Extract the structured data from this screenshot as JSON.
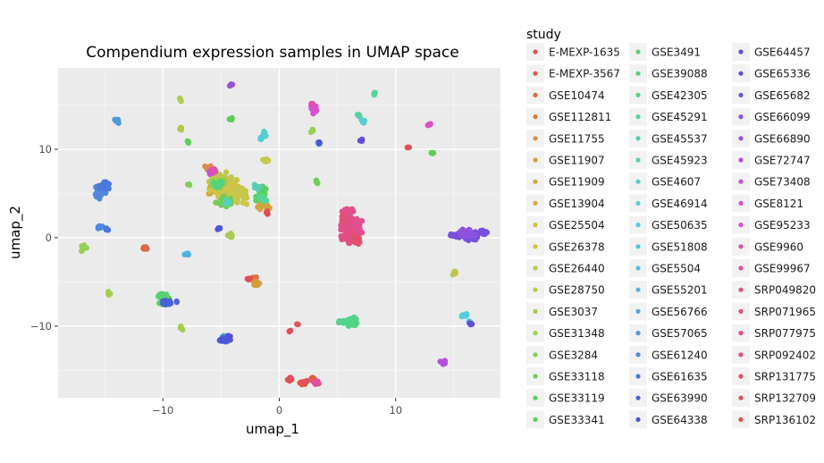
{
  "chart_data": {
    "type": "scatter",
    "title": "Compendium expression samples in UMAP space",
    "xlabel": "umap_1",
    "ylabel": "umap_2",
    "xlim": [
      -19.0,
      19.0
    ],
    "ylim": [
      -18.1,
      19.2
    ],
    "xticks": [
      -10,
      0,
      10
    ],
    "xtick_labels": [
      "−10",
      "0",
      "10"
    ],
    "yticks": [
      -10,
      0,
      10
    ],
    "ytick_labels": [
      "−10",
      "0",
      "10"
    ],
    "grid": true,
    "legend": {
      "title": "study",
      "placement": "right"
    },
    "series": [
      {
        "name": "E-MEXP-1635",
        "color": "#e24f57",
        "clusters": [
          [
            1.0,
            -16.0,
            0.3,
            0.3,
            10
          ]
        ]
      },
      {
        "name": "E-MEXP-3567",
        "color": "#e05a4a",
        "clusters": [
          [
            2.0,
            -16.4,
            0.4,
            0.2,
            14
          ],
          [
            2.9,
            -16.0,
            0.2,
            0.2,
            6
          ]
        ]
      },
      {
        "name": "GSE10474",
        "color": "#d96a45",
        "clusters": [
          [
            -11.5,
            -1.2,
            0.2,
            0.2,
            10
          ]
        ]
      },
      {
        "name": "GSE112811",
        "color": "#d7773f",
        "clusters": [
          [
            -2.2,
            -4.6,
            0.3,
            0.2,
            10
          ]
        ]
      },
      {
        "name": "GSE11755",
        "color": "#d98a4a",
        "clusters": [
          [
            -6.1,
            7.9,
            0.3,
            0.3,
            8
          ]
        ]
      },
      {
        "name": "GSE11907",
        "color": "#d49c3d",
        "clusters": [
          [
            -2.0,
            -5.2,
            0.35,
            0.25,
            18
          ]
        ]
      },
      {
        "name": "GSE11909",
        "color": "#d3a43f",
        "clusters": [
          [
            -1.5,
            3.5,
            0.7,
            0.5,
            14
          ]
        ]
      },
      {
        "name": "GSE13904",
        "color": "#cfae3e",
        "clusters": [
          [
            -5.2,
            5.5,
            1.0,
            0.8,
            30
          ]
        ]
      },
      {
        "name": "GSE25504",
        "color": "#cfc246",
        "clusters": [
          [
            -4.6,
            5.8,
            1.4,
            1.1,
            70
          ]
        ]
      },
      {
        "name": "GSE26378",
        "color": "#c7c74b",
        "clusters": [
          [
            -4.0,
            4.6,
            1.2,
            0.9,
            50
          ],
          [
            -1.1,
            8.8,
            0.3,
            0.2,
            6
          ]
        ]
      },
      {
        "name": "GSE26440",
        "color": "#bfc64b",
        "clusters": [
          [
            -5.0,
            6.5,
            1.1,
            0.9,
            40
          ],
          [
            15.0,
            -4.0,
            0.2,
            0.2,
            5
          ]
        ]
      },
      {
        "name": "GSE28750",
        "color": "#b0cc4c",
        "clusters": [
          [
            -8.4,
            12.3,
            0.2,
            0.2,
            4
          ],
          [
            -8.5,
            15.6,
            0.2,
            0.2,
            4
          ]
        ]
      },
      {
        "name": "GSE3037",
        "color": "#a4cc4e",
        "clusters": [
          [
            -4.2,
            0.3,
            0.3,
            0.3,
            8
          ],
          [
            -14.7,
            -6.3,
            0.2,
            0.2,
            4
          ],
          [
            -8.5,
            -10.2,
            0.2,
            0.2,
            4
          ]
        ]
      },
      {
        "name": "GSE31348",
        "color": "#96d055",
        "clusters": [
          [
            -16.8,
            -1.2,
            0.3,
            0.4,
            12
          ],
          [
            2.9,
            12.1,
            0.2,
            0.2,
            4
          ]
        ]
      },
      {
        "name": "GSE3284",
        "color": "#84cf55",
        "clusters": [
          [
            -5.2,
            6.2,
            0.8,
            0.6,
            20
          ],
          [
            -7.8,
            6.0,
            0.2,
            0.2,
            4
          ]
        ]
      },
      {
        "name": "GSE33118",
        "color": "#6dcf56",
        "clusters": [
          [
            -4.6,
            4.0,
            0.9,
            0.7,
            24
          ],
          [
            3.2,
            6.3,
            0.2,
            0.2,
            4
          ]
        ]
      },
      {
        "name": "GSE33119",
        "color": "#5ccf58",
        "clusters": [
          [
            -4.2,
            13.4,
            0.2,
            0.2,
            4
          ],
          [
            -7.8,
            10.8,
            0.2,
            0.2,
            4
          ],
          [
            13.1,
            9.5,
            0.2,
            0.2,
            4
          ]
        ]
      },
      {
        "name": "GSE33341",
        "color": "#57d15e",
        "clusters": [
          [
            -9.8,
            -7.2,
            0.5,
            0.5,
            30
          ],
          [
            -1.5,
            5.0,
            0.5,
            0.8,
            22
          ]
        ]
      },
      {
        "name": "GSE3491",
        "color": "#56d372",
        "clusters": [
          [
            -10.1,
            -6.5,
            0.4,
            0.3,
            12
          ]
        ]
      },
      {
        "name": "GSE39088",
        "color": "#52d37f",
        "clusters": [
          [
            -5.2,
            6.0,
            0.4,
            0.4,
            10
          ]
        ]
      },
      {
        "name": "GSE42305",
        "color": "#53d389",
        "clusters": [
          [
            6.3,
            -9.5,
            0.5,
            0.5,
            36
          ],
          [
            5.5,
            -9.5,
            0.6,
            0.15,
            16
          ]
        ]
      },
      {
        "name": "GSE45291",
        "color": "#55d49a",
        "clusters": [
          [
            8.2,
            16.3,
            0.15,
            0.15,
            3
          ],
          [
            -1.4,
            4.5,
            0.3,
            0.4,
            8
          ]
        ]
      },
      {
        "name": "GSE45537",
        "color": "#55d1a2",
        "clusters": [
          [
            6.8,
            13.8,
            0.2,
            0.2,
            4
          ]
        ]
      },
      {
        "name": "GSE45923",
        "color": "#53d0b3",
        "clusters": [
          [
            -2.0,
            5.6,
            0.3,
            0.4,
            8
          ]
        ]
      },
      {
        "name": "GSE4607",
        "color": "#55d0c0",
        "clusters": [
          [
            -4.5,
            4.0,
            0.3,
            0.3,
            6
          ]
        ]
      },
      {
        "name": "GSE46914",
        "color": "#55cfcf",
        "clusters": [
          [
            -1.3,
            11.7,
            0.2,
            0.4,
            8
          ],
          [
            7.2,
            13.2,
            0.2,
            0.2,
            4
          ]
        ]
      },
      {
        "name": "GSE50635",
        "color": "#53cddf",
        "clusters": [
          [
            15.8,
            -8.8,
            0.3,
            0.2,
            10
          ],
          [
            -1.6,
            11.2,
            0.15,
            0.2,
            4
          ]
        ]
      },
      {
        "name": "GSE51808",
        "color": "#4fc8e3",
        "clusters": [
          [
            3.4,
            10.7,
            0.2,
            0.2,
            5
          ]
        ]
      },
      {
        "name": "GSE5504",
        "color": "#4ec0e4",
        "clusters": [
          [
            16.3,
            -9.6,
            0.2,
            0.2,
            4
          ]
        ]
      },
      {
        "name": "GSE55201",
        "color": "#4db4e2",
        "clusters": [
          [
            -7.9,
            -1.9,
            0.25,
            0.15,
            10
          ]
        ]
      },
      {
        "name": "GSE56766",
        "color": "#50a8e1",
        "clusters": [
          [
            -4.6,
            -11.2,
            0.3,
            0.2,
            8
          ]
        ]
      },
      {
        "name": "GSE57065",
        "color": "#5198dc",
        "clusters": [
          [
            -13.9,
            13.2,
            0.3,
            0.3,
            10
          ]
        ]
      },
      {
        "name": "GSE61240",
        "color": "#5089dc",
        "clusters": [
          [
            -15.4,
            5.3,
            0.5,
            0.9,
            50
          ],
          [
            -15.4,
            1.2,
            0.3,
            0.2,
            10
          ]
        ]
      },
      {
        "name": "GSE61635",
        "color": "#4e78dc",
        "clusters": [
          [
            -15.0,
            5.8,
            0.5,
            0.6,
            25
          ],
          [
            -14.8,
            1.0,
            0.2,
            0.2,
            5
          ]
        ]
      },
      {
        "name": "GSE63990",
        "color": "#4a62d8",
        "clusters": [
          [
            -9.4,
            -7.3,
            0.6,
            0.3,
            18
          ],
          [
            -4.7,
            -11.5,
            0.6,
            0.3,
            18
          ]
        ]
      },
      {
        "name": "GSE64338",
        "color": "#4e55d6",
        "clusters": [
          [
            -5.2,
            1.0,
            0.2,
            0.2,
            5
          ],
          [
            -5.0,
            -11.6,
            0.4,
            0.2,
            10
          ]
        ]
      },
      {
        "name": "GSE64457",
        "color": "#5350d8",
        "clusters": [
          [
            3.4,
            10.7,
            0.15,
            0.1,
            3
          ],
          [
            -4.4,
            -11.2,
            0.2,
            0.2,
            4
          ]
        ]
      },
      {
        "name": "GSE65336",
        "color": "#5f4fd9",
        "clusters": [
          [
            7.0,
            11.0,
            0.15,
            0.15,
            4
          ],
          [
            16.4,
            -9.8,
            0.15,
            0.15,
            4
          ]
        ]
      },
      {
        "name": "GSE65682",
        "color": "#7551dc",
        "clusters": [
          [
            16.4,
            0.2,
            0.7,
            0.5,
            70
          ],
          [
            15.2,
            0.2,
            0.5,
            0.3,
            20
          ],
          [
            17.6,
            0.6,
            0.3,
            0.3,
            16
          ]
        ]
      },
      {
        "name": "GSE66099",
        "color": "#8c52de",
        "clusters": [
          [
            16.0,
            0.5,
            0.8,
            0.5,
            40
          ]
        ]
      },
      {
        "name": "GSE66890",
        "color": "#9a4fd9",
        "clusters": [
          [
            -4.1,
            17.3,
            0.15,
            0.2,
            5
          ]
        ]
      },
      {
        "name": "GSE72747",
        "color": "#b64fda",
        "clusters": [
          [
            14.0,
            -14.1,
            0.3,
            0.2,
            8
          ]
        ]
      },
      {
        "name": "GSE73408",
        "color": "#c94fd8",
        "clusters": [
          [
            -5.9,
            7.4,
            0.2,
            0.2,
            5
          ]
        ]
      },
      {
        "name": "GSE8121",
        "color": "#d64fd0",
        "clusters": [
          [
            3.0,
            14.6,
            0.3,
            0.6,
            16
          ]
        ]
      },
      {
        "name": "GSE95233",
        "color": "#db4fc0",
        "clusters": [
          [
            12.9,
            12.8,
            0.2,
            0.1,
            5
          ]
        ]
      },
      {
        "name": "GSE9960",
        "color": "#dd50ae",
        "clusters": [
          [
            -5.6,
            7.6,
            0.3,
            0.2,
            6
          ],
          [
            2.8,
            15.1,
            0.15,
            0.15,
            3
          ]
        ]
      },
      {
        "name": "GSE99967",
        "color": "#df4fa0",
        "clusters": [
          [
            3.1,
            -16.4,
            0.3,
            0.2,
            8
          ]
        ]
      },
      {
        "name": "SRP049820",
        "color": "#e14f8f",
        "clusters": [
          [
            6.2,
            1.2,
            0.9,
            1.3,
            160
          ],
          [
            5.9,
            3.0,
            0.5,
            0.4,
            30
          ]
        ]
      },
      {
        "name": "SRP071965",
        "color": "#e04f84",
        "clusters": [
          [
            6.0,
            0.3,
            0.7,
            0.9,
            60
          ]
        ]
      },
      {
        "name": "SRP077975",
        "color": "#e1507a",
        "clusters": [
          [
            5.6,
            2.2,
            0.4,
            0.5,
            30
          ]
        ]
      },
      {
        "name": "SRP092402",
        "color": "#e24f6d",
        "clusters": [
          [
            6.6,
            -0.3,
            0.4,
            0.4,
            20
          ]
        ]
      },
      {
        "name": "SRP131775",
        "color": "#e24f64",
        "clusters": [
          [
            2.3,
            -16.3,
            0.2,
            0.2,
            5
          ]
        ]
      },
      {
        "name": "SRP132709",
        "color": "#e24f5c",
        "clusters": [
          [
            1.6,
            -9.8,
            0.1,
            0.1,
            3
          ],
          [
            0.9,
            -10.6,
            0.1,
            0.1,
            3
          ],
          [
            11.1,
            10.2,
            0.1,
            0.1,
            3
          ]
        ]
      },
      {
        "name": "SRP136102",
        "color": "#e04f52",
        "clusters": [
          [
            -2.6,
            -4.7,
            0.2,
            0.2,
            6
          ],
          [
            -1.1,
            2.8,
            0.2,
            0.2,
            4
          ]
        ]
      }
    ]
  }
}
